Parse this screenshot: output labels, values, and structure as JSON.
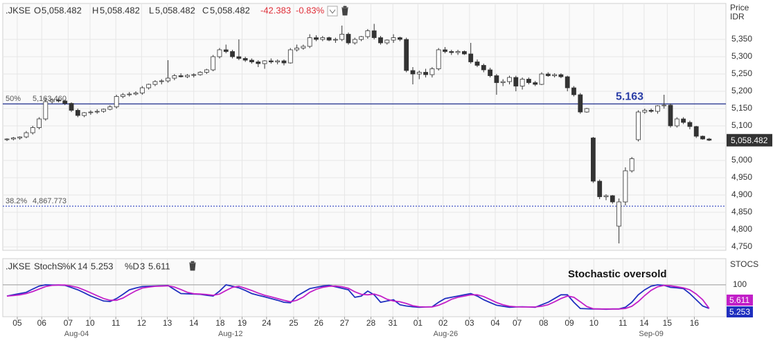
{
  "chart_data": [
    {
      "type": "candlestick",
      "header": {
        "symbol": ".JKSE",
        "open_label": "O",
        "open": "5,058.482",
        "high_label": "H",
        "high": "5,058.482",
        "low_label": "L",
        "low": "5,058.482",
        "close_label": "C",
        "close": "5,058.482",
        "change": "-42.383",
        "change_pct": "-0.83%"
      },
      "y_axis_title": [
        "Price",
        "IDR"
      ],
      "up_color": "#ffffff",
      "down_color": "#333333",
      "edge_color": "#333333",
      "grid": true,
      "ylim": [
        4740,
        5454
      ],
      "yticks": [
        {
          "value": 4750,
          "label": "4,750"
        },
        {
          "value": 4800,
          "label": "4,800"
        },
        {
          "value": 4850,
          "label": "4,850"
        },
        {
          "value": 4900,
          "label": "4,900"
        },
        {
          "value": 4950,
          "label": "4,950"
        },
        {
          "value": 5000,
          "label": "5,000"
        },
        {
          "value": 5050,
          "label": "5,050"
        },
        {
          "value": 5100,
          "label": "5,100"
        },
        {
          "value": 5150,
          "label": "5,150"
        },
        {
          "value": 5200,
          "label": "5,200"
        },
        {
          "value": 5250,
          "label": "5,250"
        },
        {
          "value": 5300,
          "label": "5,300"
        },
        {
          "value": 5350,
          "label": "5,350"
        }
      ],
      "xlim": [
        -0.65,
        111.6
      ],
      "xticks": [
        {
          "value": 1.6,
          "label": "05"
        },
        {
          "value": 5.4,
          "label": "06"
        },
        {
          "value": 9.5,
          "label": "07"
        },
        {
          "value": 12.9,
          "label": "10"
        },
        {
          "value": 16.9,
          "label": "11"
        },
        {
          "value": 20.9,
          "label": "12"
        },
        {
          "value": 24.9,
          "label": "13"
        },
        {
          "value": 29.0,
          "label": "14"
        },
        {
          "value": 33.1,
          "label": "18"
        },
        {
          "value": 36.5,
          "label": "19"
        },
        {
          "value": 40.3,
          "label": "24"
        },
        {
          "value": 44.5,
          "label": "25"
        },
        {
          "value": 48.4,
          "label": "26"
        },
        {
          "value": 52.4,
          "label": "27"
        },
        {
          "value": 56.5,
          "label": "28"
        },
        {
          "value": 59.9,
          "label": "31"
        },
        {
          "value": 63.8,
          "label": "01"
        },
        {
          "value": 67.7,
          "label": "02"
        },
        {
          "value": 71.8,
          "label": "03"
        },
        {
          "value": 75.8,
          "label": "04"
        },
        {
          "value": 79.2,
          "label": "07"
        },
        {
          "value": 83.3,
          "label": "08"
        },
        {
          "value": 87.3,
          "label": "09"
        },
        {
          "value": 91.1,
          "label": "10"
        },
        {
          "value": 95.6,
          "label": "11"
        },
        {
          "value": 98.9,
          "label": "14"
        },
        {
          "value": 102.5,
          "label": "15"
        },
        {
          "value": 106.7,
          "label": "16"
        }
      ],
      "xticks_major": [
        {
          "value": 10.8,
          "label": "Aug-04"
        },
        {
          "value": 34.7,
          "label": "Aug-12"
        },
        {
          "value": 68.1,
          "label": "Aug-26"
        },
        {
          "value": 100,
          "label": "Sep-09"
        }
      ],
      "last_price": {
        "value": 5058.482,
        "label": "5,058.482",
        "color": "#333333"
      },
      "levels": [
        {
          "name": "50%",
          "value": 5163.46,
          "label": "5,163.460",
          "color": "#1a2a8a",
          "style": "solid"
        },
        {
          "name": "38.2%",
          "value": 4867.773,
          "label": "4,867.773",
          "color": "#3f51c5",
          "style": "dotted"
        }
      ],
      "annotation": {
        "text": "5.163",
        "color": "#2b3ea6"
      },
      "ohlc": [
        [
          5060,
          5064,
          5056,
          5062
        ],
        [
          5062,
          5068,
          5058,
          5065
        ],
        [
          5065,
          5070,
          5060,
          5068
        ],
        [
          5068,
          5085,
          5064,
          5080
        ],
        [
          5080,
          5100,
          5075,
          5095
        ],
        [
          5095,
          5125,
          5090,
          5120
        ],
        [
          5120,
          5180,
          5115,
          5170
        ],
        [
          5170,
          5180,
          5165,
          5175
        ],
        [
          5175,
          5180,
          5168,
          5172
        ],
        [
          5172,
          5176,
          5160,
          5165
        ],
        [
          5165,
          5168,
          5140,
          5145
        ],
        [
          5145,
          5150,
          5125,
          5130
        ],
        [
          5130,
          5140,
          5125,
          5138
        ],
        [
          5138,
          5145,
          5132,
          5140
        ],
        [
          5140,
          5148,
          5135,
          5142
        ],
        [
          5142,
          5150,
          5138,
          5148
        ],
        [
          5148,
          5160,
          5145,
          5155
        ],
        [
          5155,
          5190,
          5150,
          5185
        ],
        [
          5185,
          5195,
          5180,
          5190
        ],
        [
          5190,
          5198,
          5185,
          5192
        ],
        [
          5192,
          5200,
          5188,
          5195
        ],
        [
          5195,
          5215,
          5190,
          5210
        ],
        [
          5210,
          5222,
          5205,
          5220
        ],
        [
          5220,
          5232,
          5215,
          5228
        ],
        [
          5228,
          5235,
          5220,
          5230
        ],
        [
          5230,
          5290,
          5225,
          5238
        ],
        [
          5238,
          5250,
          5232,
          5245
        ],
        [
          5245,
          5252,
          5240,
          5242
        ],
        [
          5242,
          5250,
          5238,
          5246
        ],
        [
          5246,
          5252,
          5240,
          5248
        ],
        [
          5248,
          5258,
          5245,
          5255
        ],
        [
          5255,
          5265,
          5250,
          5262
        ],
        [
          5262,
          5305,
          5258,
          5300
        ],
        [
          5300,
          5325,
          5295,
          5320
        ],
        [
          5320,
          5335,
          5310,
          5315
        ],
        [
          5315,
          5320,
          5295,
          5300
        ],
        [
          5300,
          5350,
          5290,
          5295
        ],
        [
          5295,
          5300,
          5285,
          5290
        ],
        [
          5290,
          5295,
          5280,
          5285
        ],
        [
          5285,
          5290,
          5270,
          5280
        ],
        [
          5280,
          5290,
          5265,
          5288
        ],
        [
          5288,
          5295,
          5280,
          5285
        ],
        [
          5285,
          5292,
          5278,
          5288
        ],
        [
          5288,
          5292,
          5275,
          5282
        ],
        [
          5282,
          5325,
          5280,
          5320
        ],
        [
          5320,
          5335,
          5315,
          5325
        ],
        [
          5325,
          5335,
          5320,
          5330
        ],
        [
          5330,
          5365,
          5325,
          5355
        ],
        [
          5355,
          5362,
          5345,
          5350
        ],
        [
          5350,
          5360,
          5345,
          5355
        ],
        [
          5355,
          5358,
          5345,
          5348
        ],
        [
          5348,
          5355,
          5340,
          5350
        ],
        [
          5350,
          5390,
          5345,
          5365
        ],
        [
          5365,
          5370,
          5335,
          5340
        ],
        [
          5340,
          5355,
          5335,
          5350
        ],
        [
          5350,
          5360,
          5345,
          5358
        ],
        [
          5358,
          5380,
          5352,
          5375
        ],
        [
          5375,
          5395,
          5350,
          5355
        ],
        [
          5355,
          5360,
          5335,
          5340
        ],
        [
          5340,
          5350,
          5335,
          5348
        ],
        [
          5348,
          5365,
          5340,
          5355
        ],
        [
          5355,
          5358,
          5345,
          5350
        ],
        [
          5350,
          5355,
          5255,
          5260
        ],
        [
          5260,
          5270,
          5220,
          5250
        ],
        [
          5250,
          5260,
          5235,
          5255
        ],
        [
          5255,
          5265,
          5240,
          5248
        ],
        [
          5248,
          5270,
          5240,
          5265
        ],
        [
          5265,
          5325,
          5260,
          5320
        ],
        [
          5320,
          5328,
          5310,
          5315
        ],
        [
          5315,
          5320,
          5305,
          5312
        ],
        [
          5312,
          5320,
          5305,
          5315
        ],
        [
          5315,
          5318,
          5305,
          5308
        ],
        [
          5308,
          5340,
          5280,
          5285
        ],
        [
          5285,
          5292,
          5270,
          5275
        ],
        [
          5275,
          5280,
          5255,
          5262
        ],
        [
          5262,
          5268,
          5240,
          5245
        ],
        [
          5245,
          5250,
          5190,
          5225
        ],
        [
          5225,
          5235,
          5215,
          5228
        ],
        [
          5228,
          5245,
          5220,
          5240
        ],
        [
          5240,
          5245,
          5200,
          5215
        ],
        [
          5215,
          5240,
          5205,
          5235
        ],
        [
          5235,
          5240,
          5220,
          5225
        ],
        [
          5225,
          5230,
          5215,
          5220
        ],
        [
          5220,
          5255,
          5218,
          5250
        ],
        [
          5250,
          5255,
          5242,
          5245
        ],
        [
          5245,
          5252,
          5240,
          5248
        ],
        [
          5248,
          5252,
          5238,
          5242
        ],
        [
          5242,
          5245,
          5200,
          5210
        ],
        [
          5210,
          5215,
          5185,
          5190
        ],
        [
          5190,
          5195,
          5135,
          5140
        ],
        [
          5140,
          5152,
          5138,
          5150
        ],
        [
          5065,
          5068,
          4935,
          4940
        ],
        [
          4940,
          4945,
          4888,
          4895
        ],
        [
          4895,
          4902,
          4885,
          4898
        ],
        [
          4898,
          4900,
          4875,
          4880
        ],
        [
          4810,
          4890,
          4760,
          4880
        ],
        [
          4880,
          4980,
          4870,
          4970
        ],
        [
          4970,
          5010,
          4965,
          5005
        ],
        [
          5060,
          5145,
          5055,
          5140
        ],
        [
          5140,
          5150,
          5135,
          5145
        ],
        [
          5145,
          5150,
          5138,
          5142
        ],
        [
          5142,
          5160,
          5135,
          5158
        ],
        [
          5158,
          5190,
          5150,
          5160
        ],
        [
          5160,
          5165,
          5095,
          5100
        ],
        [
          5100,
          5125,
          5095,
          5120
        ],
        [
          5120,
          5125,
          5105,
          5110
        ],
        [
          5110,
          5115,
          5090,
          5098
        ],
        [
          5098,
          5100,
          5065,
          5070
        ],
        [
          5070,
          5072,
          5060,
          5062
        ],
        [
          5062,
          5065,
          5056,
          5058.482
        ]
      ]
    },
    {
      "type": "line",
      "header": {
        "symbol": ".JKSE",
        "indicator": "StochS",
        "k_period": 14,
        "d_period": 3
      },
      "y_axis_title": "STOCS",
      "annotation": "Stochastic oversold",
      "grid": true,
      "ylim": [
        -28,
        205
      ],
      "yticks": [
        100
      ],
      "xlim": [
        -0.65,
        111.6
      ],
      "series": [
        {
          "name": "%K",
          "color": "#1f2fbf",
          "values": [
            55,
            60,
            65,
            70,
            83,
            95,
            100,
            99,
            99,
            98,
            89,
            80,
            68,
            55,
            45,
            35,
            33,
            45,
            62,
            80,
            87,
            93,
            94,
            95,
            96,
            97,
            81,
            65,
            64,
            63,
            62,
            58,
            55,
            75,
            100,
            94,
            88,
            77,
            65,
            58,
            52,
            45,
            38,
            30,
            28,
            55,
            70,
            85,
            90,
            95,
            98,
            92,
            86,
            80,
            50,
            55,
            75,
            60,
            30,
            35,
            40,
            20,
            15,
            12,
            10,
            11,
            12,
            30,
            45,
            50,
            55,
            60,
            65,
            55,
            40,
            29,
            18,
            14,
            10,
            11,
            12,
            11,
            10,
            20,
            30,
            45,
            60,
            60,
            30,
            5,
            4,
            3,
            3,
            2,
            3,
            3,
            10,
            30,
            60,
            80,
            95,
            100,
            98,
            90,
            88,
            85,
            65,
            40,
            15,
            5.253
          ]
        },
        {
          "name": "%D",
          "color": "#c21fc8",
          "values": [
            55,
            57,
            60,
            65,
            73,
            83,
            93,
            98,
            99,
            99,
            95,
            89,
            79,
            68,
            56,
            45,
            38,
            38,
            47,
            62,
            76,
            87,
            91,
            94,
            95,
            96,
            91,
            81,
            70,
            64,
            63,
            61,
            58,
            63,
            77,
            90,
            94,
            86,
            77,
            67,
            58,
            52,
            45,
            38,
            32,
            38,
            51,
            70,
            82,
            90,
            94,
            95,
            92,
            86,
            72,
            62,
            60,
            63,
            55,
            42,
            35,
            32,
            25,
            16,
            12,
            11,
            11,
            18,
            29,
            42,
            50,
            55,
            60,
            60,
            53,
            41,
            29,
            20,
            14,
            12,
            11,
            11,
            11,
            14,
            20,
            32,
            45,
            55,
            50,
            32,
            13,
            4,
            3,
            3,
            3,
            3,
            5,
            14,
            33,
            57,
            78,
            92,
            98,
            96,
            92,
            88,
            80,
            63,
            40,
            5.611
          ]
        }
      ]
    }
  ]
}
